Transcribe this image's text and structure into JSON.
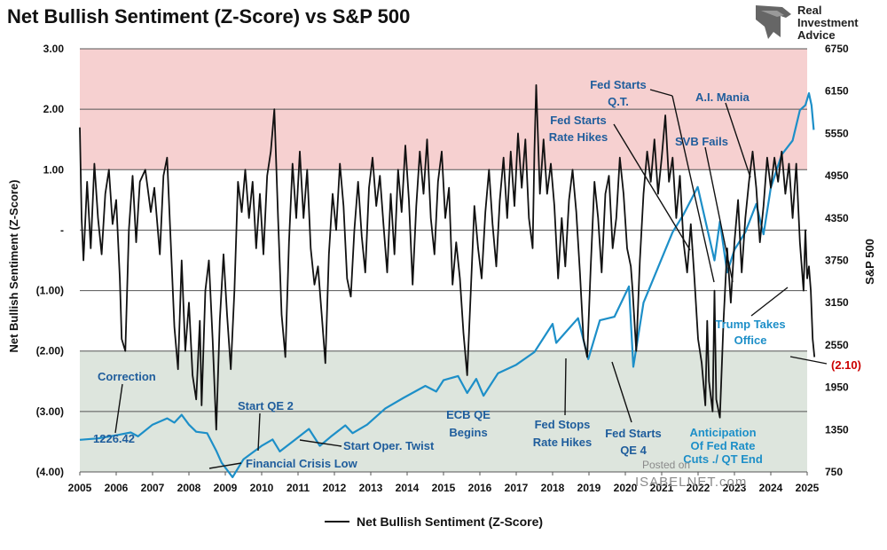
{
  "chart_data": {
    "type": "line",
    "title": "Net Bullish Sentiment (Z-Score) vs S&P 500",
    "ylabel_left": "Net Bullish Sentiment (Z-Score)",
    "ylabel_right": "S&P 500",
    "x_range": [
      2005,
      2025
    ],
    "x_ticks": [
      "2005",
      "2006",
      "2007",
      "2008",
      "2009",
      "2010",
      "2011",
      "2012",
      "2013",
      "2014",
      "2015",
      "2016",
      "2017",
      "2018",
      "2019",
      "2020",
      "2021",
      "2022",
      "2023",
      "2024",
      "2025"
    ],
    "ylim_left": [
      -4,
      3
    ],
    "y_ticks_left": [
      "3.00",
      "2.00",
      "1.00",
      "-",
      "(1.00)",
      "(2.00)",
      "(3.00)",
      "(4.00)"
    ],
    "ylim_right": [
      750,
      6750
    ],
    "y_ticks_right": [
      "6750",
      "6150",
      "5550",
      "4950",
      "4350",
      "3750",
      "3150",
      "2550",
      "1950",
      "1350",
      "750"
    ],
    "zones": [
      {
        "name": "overbought",
        "from": 1,
        "to": 3,
        "color": "#f6d0d0"
      },
      {
        "name": "oversold",
        "from": -4,
        "to": -2,
        "color": "#dde5dd"
      }
    ],
    "series": [
      {
        "name": "S&P 500",
        "axis": "right",
        "color": "#1d8fc8",
        "points": [
          [
            2005.0,
            1205
          ],
          [
            2005.5,
            1225
          ],
          [
            2006.0,
            1270
          ],
          [
            2006.4,
            1310
          ],
          [
            2006.6,
            1255
          ],
          [
            2007.0,
            1420
          ],
          [
            2007.4,
            1510
          ],
          [
            2007.6,
            1450
          ],
          [
            2007.8,
            1560
          ],
          [
            2008.0,
            1420
          ],
          [
            2008.2,
            1320
          ],
          [
            2008.5,
            1300
          ],
          [
            2008.75,
            1050
          ],
          [
            2008.9,
            880
          ],
          [
            2009.2,
            676
          ],
          [
            2009.5,
            930
          ],
          [
            2010.0,
            1120
          ],
          [
            2010.3,
            1210
          ],
          [
            2010.5,
            1040
          ],
          [
            2010.9,
            1200
          ],
          [
            2011.3,
            1360
          ],
          [
            2011.6,
            1120
          ],
          [
            2011.9,
            1250
          ],
          [
            2012.3,
            1410
          ],
          [
            2012.5,
            1300
          ],
          [
            2012.9,
            1420
          ],
          [
            2013.4,
            1650
          ],
          [
            2013.9,
            1800
          ],
          [
            2014.5,
            1970
          ],
          [
            2014.8,
            1890
          ],
          [
            2015.0,
            2050
          ],
          [
            2015.4,
            2110
          ],
          [
            2015.65,
            1870
          ],
          [
            2015.9,
            2070
          ],
          [
            2016.1,
            1830
          ],
          [
            2016.5,
            2150
          ],
          [
            2017.0,
            2270
          ],
          [
            2017.5,
            2450
          ],
          [
            2018.0,
            2850
          ],
          [
            2018.1,
            2580
          ],
          [
            2018.7,
            2930
          ],
          [
            2018.98,
            2350
          ],
          [
            2019.3,
            2900
          ],
          [
            2019.7,
            2950
          ],
          [
            2020.1,
            3380
          ],
          [
            2020.22,
            2240
          ],
          [
            2020.5,
            3150
          ],
          [
            2020.9,
            3650
          ],
          [
            2021.3,
            4150
          ],
          [
            2021.6,
            4400
          ],
          [
            2021.99,
            4790
          ],
          [
            2022.45,
            3750
          ],
          [
            2022.6,
            4300
          ],
          [
            2022.8,
            3580
          ],
          [
            2023.0,
            3900
          ],
          [
            2023.3,
            4150
          ],
          [
            2023.6,
            4550
          ],
          [
            2023.8,
            4120
          ],
          [
            2024.0,
            4780
          ],
          [
            2024.3,
            5250
          ],
          [
            2024.6,
            5450
          ],
          [
            2024.8,
            5880
          ],
          [
            2024.95,
            5950
          ],
          [
            2025.05,
            6120
          ],
          [
            2025.12,
            5950
          ],
          [
            2025.18,
            5600
          ]
        ]
      },
      {
        "name": "Net Bullish Sentiment (Z-Score)",
        "axis": "left",
        "color": "#111111",
        "points": [
          [
            2005.0,
            1.7
          ],
          [
            2005.05,
            0.2
          ],
          [
            2005.1,
            -0.5
          ],
          [
            2005.2,
            0.8
          ],
          [
            2005.3,
            -0.3
          ],
          [
            2005.4,
            1.1
          ],
          [
            2005.5,
            0.2
          ],
          [
            2005.6,
            -0.4
          ],
          [
            2005.7,
            0.6
          ],
          [
            2005.8,
            1.0
          ],
          [
            2005.9,
            0.1
          ],
          [
            2006.0,
            0.5
          ],
          [
            2006.1,
            -0.8
          ],
          [
            2006.15,
            -1.8
          ],
          [
            2006.25,
            -2.0
          ],
          [
            2006.35,
            0.0
          ],
          [
            2006.45,
            0.9
          ],
          [
            2006.55,
            -0.2
          ],
          [
            2006.65,
            0.8
          ],
          [
            2006.8,
            1.0
          ],
          [
            2006.95,
            0.3
          ],
          [
            2007.05,
            0.7
          ],
          [
            2007.2,
            -0.4
          ],
          [
            2007.3,
            0.9
          ],
          [
            2007.4,
            1.2
          ],
          [
            2007.5,
            -0.2
          ],
          [
            2007.6,
            -1.6
          ],
          [
            2007.7,
            -2.3
          ],
          [
            2007.8,
            -0.5
          ],
          [
            2007.9,
            -2.0
          ],
          [
            2008.0,
            -1.2
          ],
          [
            2008.1,
            -2.4
          ],
          [
            2008.2,
            -2.8
          ],
          [
            2008.3,
            -1.5
          ],
          [
            2008.35,
            -2.9
          ],
          [
            2008.45,
            -1.0
          ],
          [
            2008.55,
            -0.5
          ],
          [
            2008.65,
            -1.8
          ],
          [
            2008.75,
            -3.3
          ],
          [
            2008.85,
            -1.5
          ],
          [
            2008.95,
            -0.4
          ],
          [
            2009.05,
            -1.4
          ],
          [
            2009.15,
            -2.3
          ],
          [
            2009.25,
            -1.0
          ],
          [
            2009.35,
            0.8
          ],
          [
            2009.45,
            0.3
          ],
          [
            2009.55,
            1.0
          ],
          [
            2009.65,
            0.2
          ],
          [
            2009.75,
            0.8
          ],
          [
            2009.85,
            -0.3
          ],
          [
            2009.95,
            0.6
          ],
          [
            2010.05,
            -0.4
          ],
          [
            2010.15,
            0.9
          ],
          [
            2010.25,
            1.3
          ],
          [
            2010.35,
            2.0
          ],
          [
            2010.45,
            0.2
          ],
          [
            2010.55,
            -1.4
          ],
          [
            2010.65,
            -2.1
          ],
          [
            2010.75,
            -0.2
          ],
          [
            2010.85,
            1.1
          ],
          [
            2010.95,
            0.2
          ],
          [
            2011.05,
            1.3
          ],
          [
            2011.15,
            0.2
          ],
          [
            2011.25,
            1.0
          ],
          [
            2011.35,
            -0.3
          ],
          [
            2011.45,
            -0.9
          ],
          [
            2011.55,
            -0.6
          ],
          [
            2011.65,
            -1.4
          ],
          [
            2011.75,
            -2.2
          ],
          [
            2011.85,
            -0.4
          ],
          [
            2011.95,
            0.6
          ],
          [
            2012.05,
            0.0
          ],
          [
            2012.15,
            1.1
          ],
          [
            2012.25,
            0.4
          ],
          [
            2012.35,
            -0.8
          ],
          [
            2012.45,
            -1.1
          ],
          [
            2012.55,
            0.0
          ],
          [
            2012.65,
            0.8
          ],
          [
            2012.75,
            -0.1
          ],
          [
            2012.85,
            -0.7
          ],
          [
            2012.95,
            0.7
          ],
          [
            2013.05,
            1.2
          ],
          [
            2013.15,
            0.4
          ],
          [
            2013.25,
            0.9
          ],
          [
            2013.35,
            0.1
          ],
          [
            2013.45,
            -0.7
          ],
          [
            2013.55,
            0.6
          ],
          [
            2013.65,
            -0.4
          ],
          [
            2013.75,
            1.0
          ],
          [
            2013.85,
            0.3
          ],
          [
            2013.95,
            1.4
          ],
          [
            2014.05,
            0.5
          ],
          [
            2014.15,
            -0.9
          ],
          [
            2014.25,
            0.4
          ],
          [
            2014.35,
            1.3
          ],
          [
            2014.45,
            0.6
          ],
          [
            2014.55,
            1.5
          ],
          [
            2014.65,
            0.2
          ],
          [
            2014.75,
            -0.4
          ],
          [
            2014.85,
            0.8
          ],
          [
            2014.95,
            1.3
          ],
          [
            2015.05,
            0.2
          ],
          [
            2015.15,
            0.7
          ],
          [
            2015.25,
            -0.9
          ],
          [
            2015.35,
            -0.2
          ],
          [
            2015.45,
            -0.8
          ],
          [
            2015.55,
            -1.7
          ],
          [
            2015.65,
            -2.4
          ],
          [
            2015.75,
            -1.0
          ],
          [
            2015.85,
            0.4
          ],
          [
            2015.95,
            -0.3
          ],
          [
            2016.05,
            -0.8
          ],
          [
            2016.15,
            0.3
          ],
          [
            2016.25,
            1.0
          ],
          [
            2016.35,
            0.1
          ],
          [
            2016.45,
            -0.6
          ],
          [
            2016.55,
            0.5
          ],
          [
            2016.65,
            1.2
          ],
          [
            2016.75,
            0.2
          ],
          [
            2016.85,
            1.3
          ],
          [
            2016.95,
            0.4
          ],
          [
            2017.05,
            1.6
          ],
          [
            2017.15,
            0.7
          ],
          [
            2017.25,
            1.5
          ],
          [
            2017.35,
            0.2
          ],
          [
            2017.45,
            -0.3
          ],
          [
            2017.5,
            1.3
          ],
          [
            2017.55,
            2.4
          ],
          [
            2017.65,
            0.6
          ],
          [
            2017.75,
            1.5
          ],
          [
            2017.85,
            0.6
          ],
          [
            2017.95,
            1.1
          ],
          [
            2018.05,
            0.4
          ],
          [
            2018.15,
            -0.8
          ],
          [
            2018.25,
            0.2
          ],
          [
            2018.35,
            -0.6
          ],
          [
            2018.45,
            0.5
          ],
          [
            2018.55,
            1.0
          ],
          [
            2018.65,
            0.3
          ],
          [
            2018.75,
            -0.7
          ],
          [
            2018.85,
            -1.8
          ],
          [
            2018.95,
            -2.1
          ],
          [
            2019.05,
            -0.6
          ],
          [
            2019.15,
            0.8
          ],
          [
            2019.25,
            0.2
          ],
          [
            2019.35,
            -0.7
          ],
          [
            2019.45,
            0.6
          ],
          [
            2019.55,
            0.9
          ],
          [
            2019.65,
            -0.3
          ],
          [
            2019.75,
            0.2
          ],
          [
            2019.85,
            1.2
          ],
          [
            2019.95,
            0.6
          ],
          [
            2020.05,
            -0.3
          ],
          [
            2020.15,
            -0.6
          ],
          [
            2020.2,
            -1.0
          ],
          [
            2020.3,
            -2.0
          ],
          [
            2020.4,
            -0.5
          ],
          [
            2020.5,
            0.6
          ],
          [
            2020.6,
            1.3
          ],
          [
            2020.7,
            0.8
          ],
          [
            2020.8,
            1.5
          ],
          [
            2020.9,
            0.6
          ],
          [
            2021.0,
            1.2
          ],
          [
            2021.1,
            1.9
          ],
          [
            2021.2,
            0.8
          ],
          [
            2021.3,
            1.2
          ],
          [
            2021.4,
            0.2
          ],
          [
            2021.5,
            0.9
          ],
          [
            2021.6,
            -0.2
          ],
          [
            2021.7,
            -0.7
          ],
          [
            2021.8,
            0.1
          ],
          [
            2021.9,
            -0.8
          ],
          [
            2022.0,
            -1.8
          ],
          [
            2022.1,
            -2.2
          ],
          [
            2022.2,
            -2.9
          ],
          [
            2022.25,
            -1.5
          ],
          [
            2022.3,
            -2.5
          ],
          [
            2022.4,
            -3.0
          ],
          [
            2022.45,
            -1.0
          ],
          [
            2022.5,
            -2.8
          ],
          [
            2022.6,
            -3.1
          ],
          [
            2022.7,
            -1.5
          ],
          [
            2022.8,
            -0.3
          ],
          [
            2022.9,
            -1.2
          ],
          [
            2023.0,
            -0.2
          ],
          [
            2023.1,
            0.5
          ],
          [
            2023.2,
            -0.7
          ],
          [
            2023.3,
            0.2
          ],
          [
            2023.4,
            0.8
          ],
          [
            2023.5,
            1.3
          ],
          [
            2023.6,
            0.7
          ],
          [
            2023.7,
            -0.2
          ],
          [
            2023.8,
            0.4
          ],
          [
            2023.9,
            1.2
          ],
          [
            2024.0,
            0.7
          ],
          [
            2024.1,
            1.2
          ],
          [
            2024.2,
            0.8
          ],
          [
            2024.3,
            1.3
          ],
          [
            2024.4,
            0.6
          ],
          [
            2024.5,
            1.1
          ],
          [
            2024.6,
            0.2
          ],
          [
            2024.7,
            1.1
          ],
          [
            2024.8,
            -0.2
          ],
          [
            2024.9,
            -1.0
          ],
          [
            2024.95,
            0.0
          ],
          [
            2025.0,
            -0.8
          ],
          [
            2025.05,
            -0.6
          ],
          [
            2025.1,
            -1.0
          ],
          [
            2025.15,
            -1.8
          ],
          [
            2025.2,
            -2.1
          ]
        ]
      }
    ],
    "annotations": {
      "correction": "Correction",
      "sp_start_value": "1226.42",
      "start_qe2": "Start QE 2",
      "financial_crisis_low": "Financial Crisis Low",
      "start_oper_twist": "Start Oper. Twist",
      "ecb_qe_line1": "ECB QE",
      "ecb_qe_line2": "Begins",
      "fed_stops_line1": "Fed Stops",
      "fed_stops_line2": "Rate Hikes",
      "fed_qe4_line1": "Fed Starts",
      "fed_qe4_line2": "QE 4",
      "fed_hikes_line1": "Fed Starts",
      "fed_hikes_line2": "Rate Hikes",
      "fed_qt_line1": "Fed Starts",
      "fed_qt_line2": "Q.T.",
      "svb_fails": "SVB Fails",
      "ai_mania": "A.I. Mania",
      "trump_line1": "Trump Takes",
      "trump_line2": "Office",
      "anticipation_line1": "Anticipation",
      "anticipation_line2": "Of Fed Rate",
      "anticipation_line3": "Cuts ./ QT End",
      "last_value": "(2.10)"
    },
    "legend": {
      "label": "Net Bullish Sentiment (Z-Score)",
      "position": "bottom-center"
    },
    "logo": {
      "line1": "Real",
      "line2": "Investment",
      "line3": "Advice"
    },
    "watermark": {
      "line1": "Posted on",
      "line2": "ISABELNET.com"
    }
  }
}
